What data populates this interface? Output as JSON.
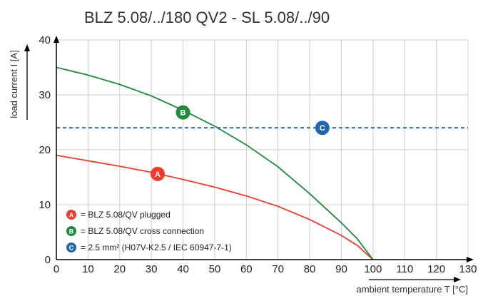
{
  "chart_data": {
    "type": "line",
    "title": "BLZ 5.08/../180 QV2 - SL 5.08/../90",
    "xlabel": "ambient temperature T [°C]",
    "ylabel": "load current I [A]",
    "xlim": [
      0,
      130
    ],
    "ylim": [
      0,
      40
    ],
    "x_ticks": [
      0,
      10,
      20,
      30,
      40,
      50,
      60,
      70,
      80,
      90,
      100,
      110,
      120,
      130
    ],
    "y_ticks": [
      0,
      10,
      20,
      30,
      40
    ],
    "grid": true,
    "series": [
      {
        "id": "A",
        "name": "= BLZ 5.08/QV plugged",
        "color": "#ef3b2c",
        "x": [
          0,
          10,
          20,
          30,
          40,
          50,
          60,
          70,
          80,
          90,
          95,
          100
        ],
        "y": [
          19.0,
          18.0,
          17.0,
          15.9,
          14.6,
          13.2,
          11.6,
          9.7,
          7.3,
          4.4,
          2.6,
          0.0
        ],
        "marker_at": [
          32,
          15.6
        ]
      },
      {
        "id": "B",
        "name": "= BLZ 5.08/QV cross connection",
        "color": "#1f8b3f",
        "x": [
          0,
          10,
          20,
          30,
          40,
          50,
          60,
          70,
          80,
          90,
          95,
          100
        ],
        "y": [
          35.0,
          33.6,
          31.9,
          29.8,
          27.2,
          24.3,
          20.9,
          16.9,
          12.0,
          6.7,
          3.8,
          0.0
        ],
        "marker_at": [
          40,
          26.8
        ]
      },
      {
        "id": "C",
        "name": "= 2.5 mm² (H07V-K2.5 / IEC 60947-7-1)",
        "color": "#2166ac",
        "dashed": true,
        "x": [
          0,
          130
        ],
        "y": [
          24,
          24
        ],
        "marker_at": [
          84,
          24
        ]
      }
    ],
    "legend_position": "bottom-left"
  }
}
